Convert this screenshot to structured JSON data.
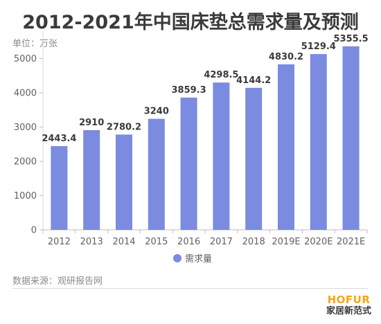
{
  "unit_label": "单位：万张",
  "source": "数据来源：观研报告网",
  "brand": {
    "name": "HOFUR",
    "subtitle": "家居新范式"
  },
  "colors": {
    "bar": "#7a8be0",
    "text": "#3a3a3a",
    "axis": "#5f5f5f",
    "grid": "#d0d0d0"
  },
  "chart_data": {
    "type": "bar",
    "title": "2012-2021年中国床垫总需求量及预测",
    "xlabel": "",
    "ylabel": "",
    "categories": [
      "2012",
      "2013",
      "2014",
      "2015",
      "2016",
      "2017",
      "2018",
      "2019E",
      "2020E",
      "2021E"
    ],
    "series": [
      {
        "name": "需求量",
        "values": [
          2443.4,
          2910,
          2780.2,
          3240,
          3859.3,
          4298.5,
          4144.2,
          4830.2,
          5129.4,
          5355.5
        ],
        "labels": [
          "2443.4",
          "2910",
          "2780.2",
          "3240",
          "3859.3",
          "4298.5",
          "4144.2",
          "4830.2",
          "5129.4",
          "5355.5"
        ]
      }
    ],
    "ylim": [
      0,
      6000
    ],
    "yticks": [
      0,
      1000,
      2000,
      3000,
      4000,
      5000
    ],
    "grid": false,
    "legend": "bottom"
  }
}
